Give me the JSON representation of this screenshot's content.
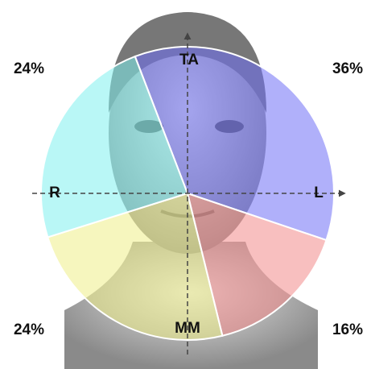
{
  "chart_data": {
    "type": "pie",
    "values": [
      36,
      16,
      24,
      24
    ],
    "value_labels": [
      "36%",
      "16%",
      "24%",
      "24%"
    ],
    "colors": [
      "#6f6ff5",
      "#f28a8a",
      "#eeee88",
      "#7ff0ef"
    ],
    "axis_labels": {
      "top": "TA",
      "right": "L",
      "bottom": "MM",
      "left": "R"
    }
  }
}
